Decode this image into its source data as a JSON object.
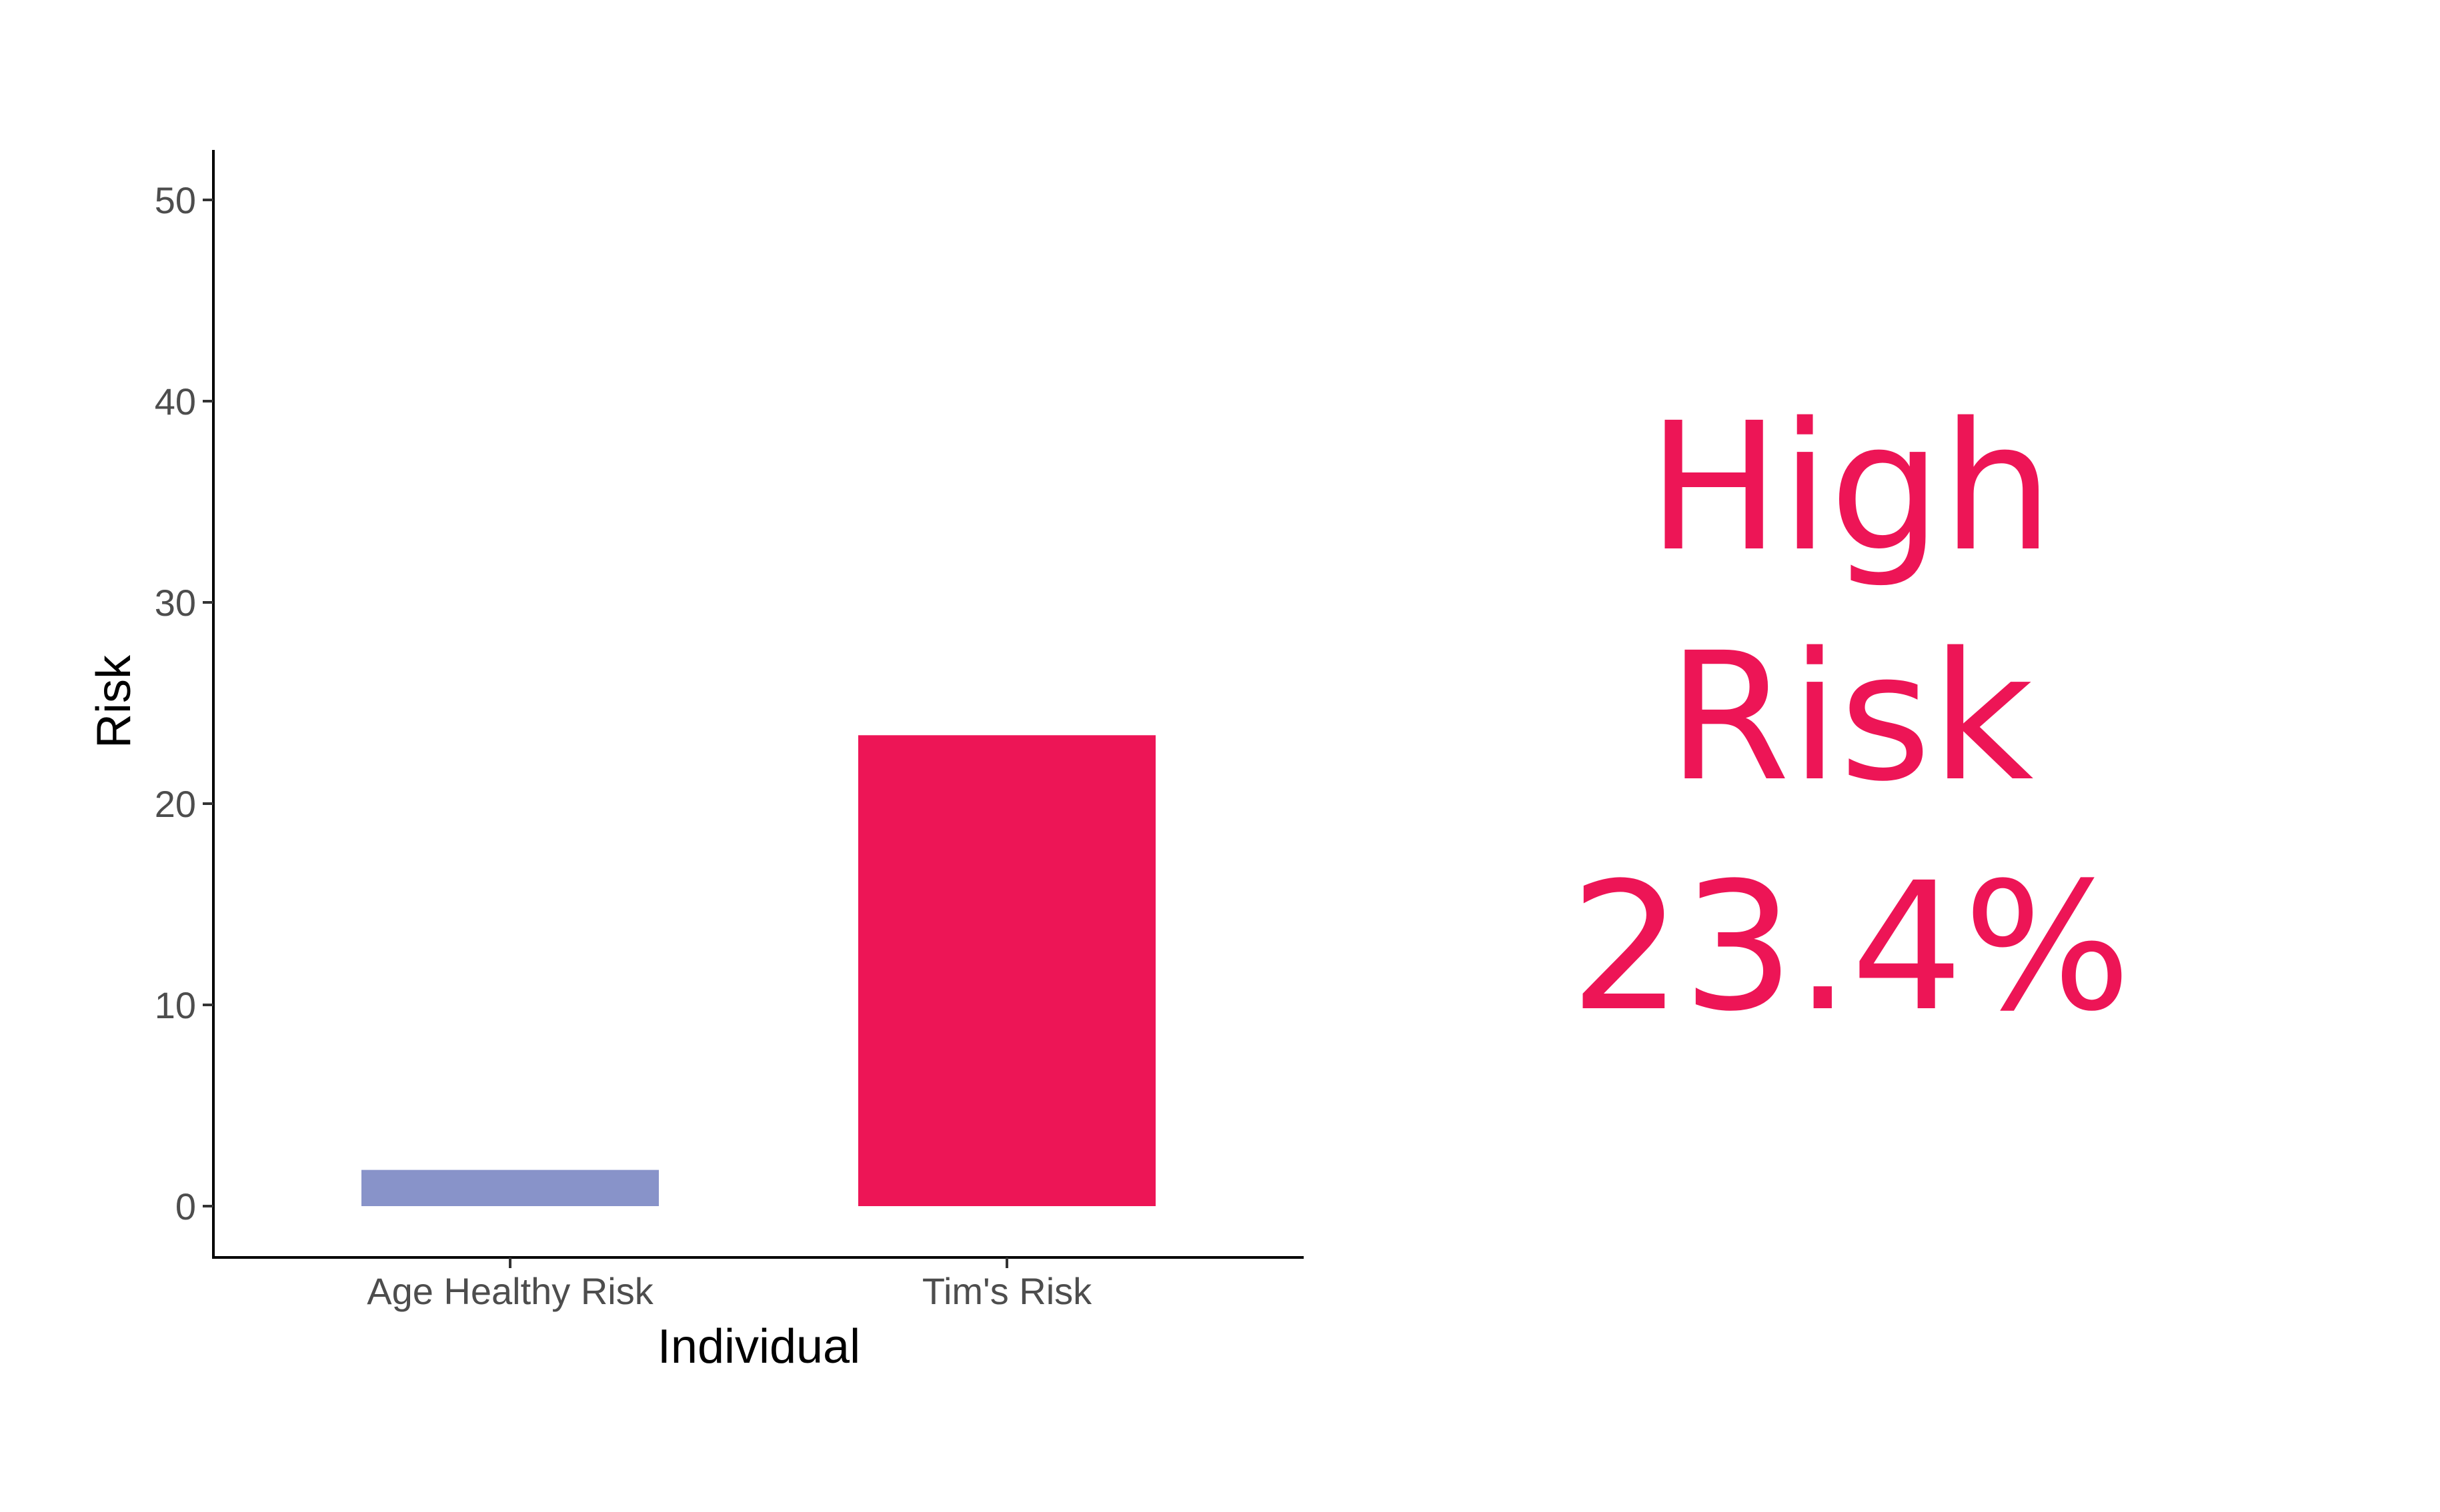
{
  "chart_data": {
    "type": "bar",
    "categories": [
      "Age Healthy Risk",
      "Tim's Risk"
    ],
    "values": [
      1.8,
      23.4
    ],
    "colors": [
      "#8893c9",
      "#ed1556"
    ],
    "xlabel": "Individual",
    "ylabel": "Risk",
    "ylim": [
      0,
      52.5
    ],
    "yticks": [
      0,
      10,
      20,
      30,
      40,
      50
    ],
    "grid": false,
    "legend": "none"
  },
  "headline": {
    "line1": "High",
    "line2": "Risk",
    "line3": "23.4%",
    "color": "#ed1556"
  }
}
